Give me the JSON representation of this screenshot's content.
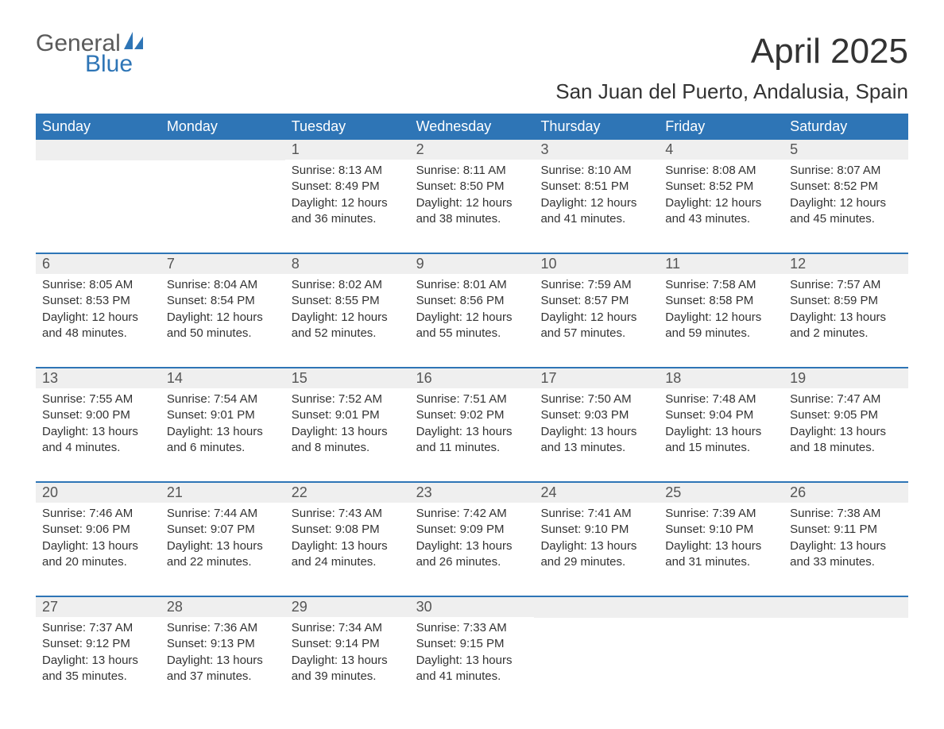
{
  "logo": {
    "text_top": "General",
    "text_bottom": "Blue"
  },
  "title": "April 2025",
  "subtitle": "San Juan del Puerto, Andalusia, Spain",
  "colors": {
    "header_bg": "#2e75b6",
    "header_text": "#ffffff",
    "daynum_bg": "#efefef",
    "body_text": "#333333",
    "logo_gray": "#5a5a5a",
    "logo_blue": "#2e75b6",
    "row_border": "#2e75b6",
    "background": "#ffffff"
  },
  "typography": {
    "title_fontsize": 44,
    "subtitle_fontsize": 26,
    "weekday_fontsize": 18,
    "daynum_fontsize": 18,
    "content_fontsize": 15
  },
  "weekdays": [
    "Sunday",
    "Monday",
    "Tuesday",
    "Wednesday",
    "Thursday",
    "Friday",
    "Saturday"
  ],
  "weeks": [
    [
      {
        "day": "",
        "lines": [
          "",
          "",
          "",
          ""
        ]
      },
      {
        "day": "",
        "lines": [
          "",
          "",
          "",
          ""
        ]
      },
      {
        "day": "1",
        "lines": [
          "Sunrise: 8:13 AM",
          "Sunset: 8:49 PM",
          "Daylight: 12 hours",
          "and 36 minutes."
        ]
      },
      {
        "day": "2",
        "lines": [
          "Sunrise: 8:11 AM",
          "Sunset: 8:50 PM",
          "Daylight: 12 hours",
          "and 38 minutes."
        ]
      },
      {
        "day": "3",
        "lines": [
          "Sunrise: 8:10 AM",
          "Sunset: 8:51 PM",
          "Daylight: 12 hours",
          "and 41 minutes."
        ]
      },
      {
        "day": "4",
        "lines": [
          "Sunrise: 8:08 AM",
          "Sunset: 8:52 PM",
          "Daylight: 12 hours",
          "and 43 minutes."
        ]
      },
      {
        "day": "5",
        "lines": [
          "Sunrise: 8:07 AM",
          "Sunset: 8:52 PM",
          "Daylight: 12 hours",
          "and 45 minutes."
        ]
      }
    ],
    [
      {
        "day": "6",
        "lines": [
          "Sunrise: 8:05 AM",
          "Sunset: 8:53 PM",
          "Daylight: 12 hours",
          "and 48 minutes."
        ]
      },
      {
        "day": "7",
        "lines": [
          "Sunrise: 8:04 AM",
          "Sunset: 8:54 PM",
          "Daylight: 12 hours",
          "and 50 minutes."
        ]
      },
      {
        "day": "8",
        "lines": [
          "Sunrise: 8:02 AM",
          "Sunset: 8:55 PM",
          "Daylight: 12 hours",
          "and 52 minutes."
        ]
      },
      {
        "day": "9",
        "lines": [
          "Sunrise: 8:01 AM",
          "Sunset: 8:56 PM",
          "Daylight: 12 hours",
          "and 55 minutes."
        ]
      },
      {
        "day": "10",
        "lines": [
          "Sunrise: 7:59 AM",
          "Sunset: 8:57 PM",
          "Daylight: 12 hours",
          "and 57 minutes."
        ]
      },
      {
        "day": "11",
        "lines": [
          "Sunrise: 7:58 AM",
          "Sunset: 8:58 PM",
          "Daylight: 12 hours",
          "and 59 minutes."
        ]
      },
      {
        "day": "12",
        "lines": [
          "Sunrise: 7:57 AM",
          "Sunset: 8:59 PM",
          "Daylight: 13 hours",
          "and 2 minutes."
        ]
      }
    ],
    [
      {
        "day": "13",
        "lines": [
          "Sunrise: 7:55 AM",
          "Sunset: 9:00 PM",
          "Daylight: 13 hours",
          "and 4 minutes."
        ]
      },
      {
        "day": "14",
        "lines": [
          "Sunrise: 7:54 AM",
          "Sunset: 9:01 PM",
          "Daylight: 13 hours",
          "and 6 minutes."
        ]
      },
      {
        "day": "15",
        "lines": [
          "Sunrise: 7:52 AM",
          "Sunset: 9:01 PM",
          "Daylight: 13 hours",
          "and 8 minutes."
        ]
      },
      {
        "day": "16",
        "lines": [
          "Sunrise: 7:51 AM",
          "Sunset: 9:02 PM",
          "Daylight: 13 hours",
          "and 11 minutes."
        ]
      },
      {
        "day": "17",
        "lines": [
          "Sunrise: 7:50 AM",
          "Sunset: 9:03 PM",
          "Daylight: 13 hours",
          "and 13 minutes."
        ]
      },
      {
        "day": "18",
        "lines": [
          "Sunrise: 7:48 AM",
          "Sunset: 9:04 PM",
          "Daylight: 13 hours",
          "and 15 minutes."
        ]
      },
      {
        "day": "19",
        "lines": [
          "Sunrise: 7:47 AM",
          "Sunset: 9:05 PM",
          "Daylight: 13 hours",
          "and 18 minutes."
        ]
      }
    ],
    [
      {
        "day": "20",
        "lines": [
          "Sunrise: 7:46 AM",
          "Sunset: 9:06 PM",
          "Daylight: 13 hours",
          "and 20 minutes."
        ]
      },
      {
        "day": "21",
        "lines": [
          "Sunrise: 7:44 AM",
          "Sunset: 9:07 PM",
          "Daylight: 13 hours",
          "and 22 minutes."
        ]
      },
      {
        "day": "22",
        "lines": [
          "Sunrise: 7:43 AM",
          "Sunset: 9:08 PM",
          "Daylight: 13 hours",
          "and 24 minutes."
        ]
      },
      {
        "day": "23",
        "lines": [
          "Sunrise: 7:42 AM",
          "Sunset: 9:09 PM",
          "Daylight: 13 hours",
          "and 26 minutes."
        ]
      },
      {
        "day": "24",
        "lines": [
          "Sunrise: 7:41 AM",
          "Sunset: 9:10 PM",
          "Daylight: 13 hours",
          "and 29 minutes."
        ]
      },
      {
        "day": "25",
        "lines": [
          "Sunrise: 7:39 AM",
          "Sunset: 9:10 PM",
          "Daylight: 13 hours",
          "and 31 minutes."
        ]
      },
      {
        "day": "26",
        "lines": [
          "Sunrise: 7:38 AM",
          "Sunset: 9:11 PM",
          "Daylight: 13 hours",
          "and 33 minutes."
        ]
      }
    ],
    [
      {
        "day": "27",
        "lines": [
          "Sunrise: 7:37 AM",
          "Sunset: 9:12 PM",
          "Daylight: 13 hours",
          "and 35 minutes."
        ]
      },
      {
        "day": "28",
        "lines": [
          "Sunrise: 7:36 AM",
          "Sunset: 9:13 PM",
          "Daylight: 13 hours",
          "and 37 minutes."
        ]
      },
      {
        "day": "29",
        "lines": [
          "Sunrise: 7:34 AM",
          "Sunset: 9:14 PM",
          "Daylight: 13 hours",
          "and 39 minutes."
        ]
      },
      {
        "day": "30",
        "lines": [
          "Sunrise: 7:33 AM",
          "Sunset: 9:15 PM",
          "Daylight: 13 hours",
          "and 41 minutes."
        ]
      },
      {
        "day": "",
        "lines": [
          "",
          "",
          "",
          ""
        ]
      },
      {
        "day": "",
        "lines": [
          "",
          "",
          "",
          ""
        ]
      },
      {
        "day": "",
        "lines": [
          "",
          "",
          "",
          ""
        ]
      }
    ]
  ]
}
